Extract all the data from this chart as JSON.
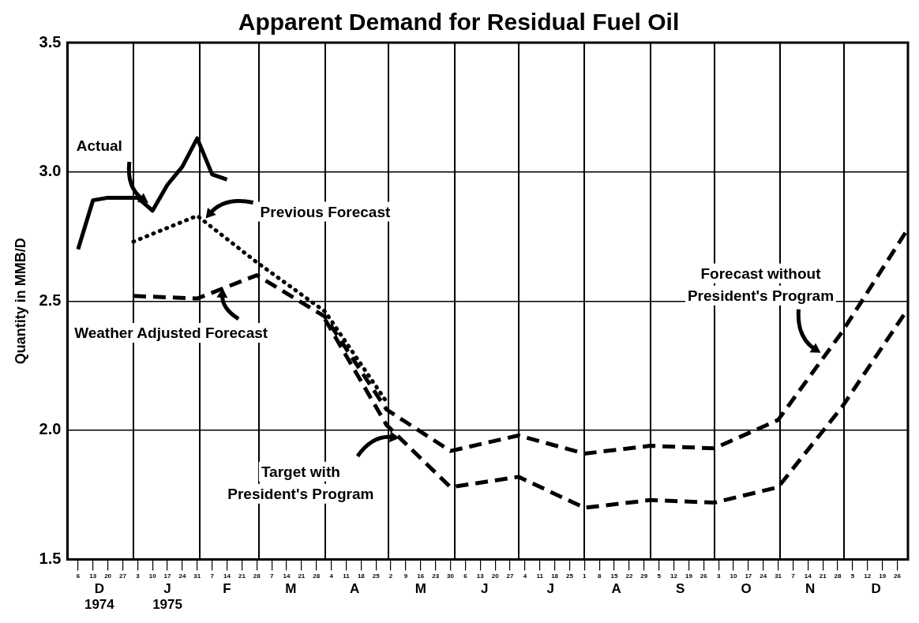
{
  "chart_data": {
    "type": "line",
    "title": "Apparent Demand for Residual Fuel Oil",
    "ylabel": "Quantity in MMB/D",
    "xlim": [
      "1974-12-01",
      "1975-12-31"
    ],
    "xticks": [
      {
        "value": "1974-12-06",
        "label": "6"
      },
      {
        "value": "1974-12-13",
        "label": "13"
      },
      {
        "value": "1974-12-20",
        "label": "20"
      },
      {
        "value": "1974-12-27",
        "label": "27"
      },
      {
        "value": "1975-01-03",
        "label": "3"
      },
      {
        "value": "1975-01-10",
        "label": "10"
      },
      {
        "value": "1975-01-17",
        "label": "17"
      },
      {
        "value": "1975-01-24",
        "label": "24"
      },
      {
        "value": "1975-01-31",
        "label": "31"
      },
      {
        "value": "1975-02-07",
        "label": "7"
      },
      {
        "value": "1975-02-14",
        "label": "14"
      },
      {
        "value": "1975-02-21",
        "label": "21"
      },
      {
        "value": "1975-02-28",
        "label": "28"
      },
      {
        "value": "1975-03-07",
        "label": "7"
      },
      {
        "value": "1975-03-14",
        "label": "14"
      },
      {
        "value": "1975-03-21",
        "label": "21"
      },
      {
        "value": "1975-03-28",
        "label": "28"
      },
      {
        "value": "1975-04-04",
        "label": "4"
      },
      {
        "value": "1975-04-11",
        "label": "11"
      },
      {
        "value": "1975-04-18",
        "label": "18"
      },
      {
        "value": "1975-04-25",
        "label": "25"
      },
      {
        "value": "1975-05-02",
        "label": "2"
      },
      {
        "value": "1975-05-09",
        "label": "9"
      },
      {
        "value": "1975-05-16",
        "label": "16"
      },
      {
        "value": "1975-05-23",
        "label": "23"
      },
      {
        "value": "1975-05-30",
        "label": "30"
      },
      {
        "value": "1975-06-06",
        "label": "6"
      },
      {
        "value": "1975-06-13",
        "label": "13"
      },
      {
        "value": "1975-06-20",
        "label": "20"
      },
      {
        "value": "1975-06-27",
        "label": "27"
      },
      {
        "value": "1975-07-04",
        "label": "4"
      },
      {
        "value": "1975-07-11",
        "label": "11"
      },
      {
        "value": "1975-07-18",
        "label": "18"
      },
      {
        "value": "1975-07-25",
        "label": "25"
      },
      {
        "value": "1975-08-01",
        "label": "1"
      },
      {
        "value": "1975-08-08",
        "label": "8"
      },
      {
        "value": "1975-08-15",
        "label": "15"
      },
      {
        "value": "1975-08-22",
        "label": "22"
      },
      {
        "value": "1975-08-29",
        "label": "29"
      },
      {
        "value": "1975-09-05",
        "label": "5"
      },
      {
        "value": "1975-09-12",
        "label": "12"
      },
      {
        "value": "1975-09-19",
        "label": "19"
      },
      {
        "value": "1975-09-26",
        "label": "26"
      },
      {
        "value": "1975-10-03",
        "label": "3"
      },
      {
        "value": "1975-10-10",
        "label": "10"
      },
      {
        "value": "1975-10-17",
        "label": "17"
      },
      {
        "value": "1975-10-24",
        "label": "24"
      },
      {
        "value": "1975-10-31",
        "label": "31"
      },
      {
        "value": "1975-11-07",
        "label": "7"
      },
      {
        "value": "1975-11-14",
        "label": "14"
      },
      {
        "value": "1975-11-21",
        "label": "21"
      },
      {
        "value": "1975-11-28",
        "label": "28"
      },
      {
        "value": "1975-12-05",
        "label": "5"
      },
      {
        "value": "1975-12-12",
        "label": "12"
      },
      {
        "value": "1975-12-19",
        "label": "19"
      },
      {
        "value": "1975-12-26",
        "label": "26"
      }
    ],
    "x2lim": [
      "1974-12-01",
      "1975-12-31"
    ],
    "x2ticks": [
      {
        "value": "1974-12-16",
        "label": "D\n1974"
      },
      {
        "value": "1975-01-01",
        "label": null
      },
      {
        "value": "1975-01-17",
        "label": "J\n1975"
      },
      {
        "value": "1975-02-01",
        "label": null
      },
      {
        "value": "1975-02-14",
        "label": "F"
      },
      {
        "value": "1975-03-01",
        "label": null
      },
      {
        "value": "1975-03-16",
        "label": "M"
      },
      {
        "value": "1975-04-01",
        "label": null
      },
      {
        "value": "1975-04-15",
        "label": "A"
      },
      {
        "value": "1975-05-01",
        "label": null
      },
      {
        "value": "1975-05-16",
        "label": "M"
      },
      {
        "value": "1975-06-01",
        "label": null
      },
      {
        "value": "1975-06-15",
        "label": "J"
      },
      {
        "value": "1975-07-01",
        "label": null
      },
      {
        "value": "1975-07-16",
        "label": "J"
      },
      {
        "value": "1975-08-01",
        "label": null
      },
      {
        "value": "1975-08-16",
        "label": "A"
      },
      {
        "value": "1975-09-01",
        "label": null
      },
      {
        "value": "1975-09-15",
        "label": "S"
      },
      {
        "value": "1975-10-01",
        "label": null
      },
      {
        "value": "1975-10-16",
        "label": "O"
      },
      {
        "value": "1975-11-01",
        "label": null
      },
      {
        "value": "1975-11-15",
        "label": "N"
      },
      {
        "value": "1975-12-01",
        "label": null
      },
      {
        "value": "1975-12-16",
        "label": "D"
      }
    ],
    "ylim": [
      1.5,
      3.5
    ],
    "yticks": [
      1.5,
      {
        "value": 2,
        "label": "2.0"
      },
      2.5,
      {
        "value": 3,
        "label": "3.0"
      },
      3.5
    ],
    "grid": true,
    "legend": false,
    "marker": "none",
    "annotations": [
      {
        "text": "Actual",
        "x": "1975-01-08",
        "y": 2.88
      },
      {
        "text": "Previous Forecast",
        "x": "1975-02-04",
        "y": 2.82
      },
      {
        "text": "Weather Adjusted Forecast",
        "x": "1975-02-12",
        "y": 2.55
      },
      {
        "text": "Forecast without President's Program",
        "x": "1975-11-20",
        "y": 2.3
      },
      {
        "text": "Target with President's Program",
        "x": "1975-05-06",
        "y": 1.97
      }
    ],
    "series": [
      {
        "color": "#000000",
        "line_style": "solid",
        "x": [
          "1974-12-06",
          "1974-12-13",
          "1974-12-20",
          "1974-12-27",
          "1975-01-03",
          "1975-01-10",
          "1975-01-17",
          "1975-01-24",
          "1975-01-31",
          "1975-02-07",
          "1975-02-14"
        ],
        "values": [
          2.7,
          2.89,
          2.9,
          2.9,
          2.9,
          2.85,
          2.95,
          3.02,
          3.13,
          2.99,
          2.97
        ]
      },
      {
        "color": "#000000",
        "line_style": "dotted",
        "x": [
          "1975-01-01",
          "1975-01-31",
          "1975-02-28",
          "1975-04-01",
          "1975-04-30"
        ],
        "values": [
          2.73,
          2.83,
          2.65,
          2.46,
          2.11
        ]
      },
      {
        "color": "#000000",
        "line_style": "dashed",
        "x": [
          "1975-01-01",
          "1975-01-31",
          "1975-02-28",
          "1975-04-01",
          "1975-04-30",
          "1975-05-30",
          "1975-07-01",
          "1975-08-01",
          "1975-09-01",
          "1975-10-01",
          "1975-10-31",
          "1975-11-30",
          "1975-12-31"
        ],
        "values": [
          2.52,
          2.51,
          2.6,
          2.44,
          2.08,
          1.92,
          1.98,
          1.91,
          1.94,
          1.93,
          2.04,
          2.38,
          2.78
        ]
      },
      {
        "color": "#000000",
        "line_style": "dashed",
        "x": [
          "1975-04-01",
          "1975-04-30",
          "1975-05-30",
          "1975-07-01",
          "1975-08-01",
          "1975-09-01",
          "1975-10-01",
          "1975-10-31",
          "1975-11-30",
          "1975-12-31"
        ],
        "values": [
          2.43,
          2.02,
          1.78,
          1.82,
          1.7,
          1.73,
          1.72,
          1.78,
          2.09,
          2.47
        ]
      }
    ]
  }
}
